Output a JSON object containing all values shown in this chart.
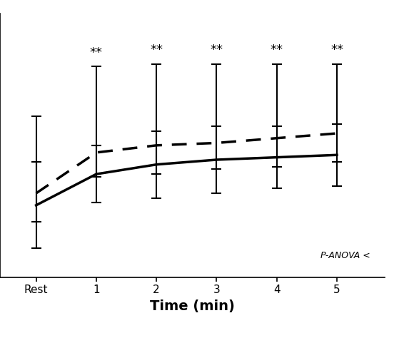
{
  "x_labels": [
    "Rest",
    "1",
    "2",
    "3",
    "4",
    "5"
  ],
  "x_positions": [
    0,
    1,
    2,
    3,
    4,
    5
  ],
  "solid_line": [
    75,
    88,
    92,
    94,
    95,
    96
  ],
  "solid_err_low": [
    18,
    12,
    14,
    14,
    13,
    13
  ],
  "solid_err_high": [
    18,
    12,
    14,
    14,
    13,
    13
  ],
  "dashed_line": [
    80,
    97,
    100,
    101,
    103,
    105
  ],
  "dashed_err_low": [
    12,
    10,
    12,
    11,
    12,
    12
  ],
  "dashed_err_high": [
    32,
    36,
    34,
    33,
    31,
    29
  ],
  "sig_positions": [
    1,
    2,
    3,
    4,
    5
  ],
  "xlabel": "Time (min)",
  "ylim": [
    45,
    155
  ],
  "yticks": [
    60,
    80,
    100,
    120,
    140
  ],
  "annotation": "P-ANOVA <",
  "background_color": "#ffffff"
}
